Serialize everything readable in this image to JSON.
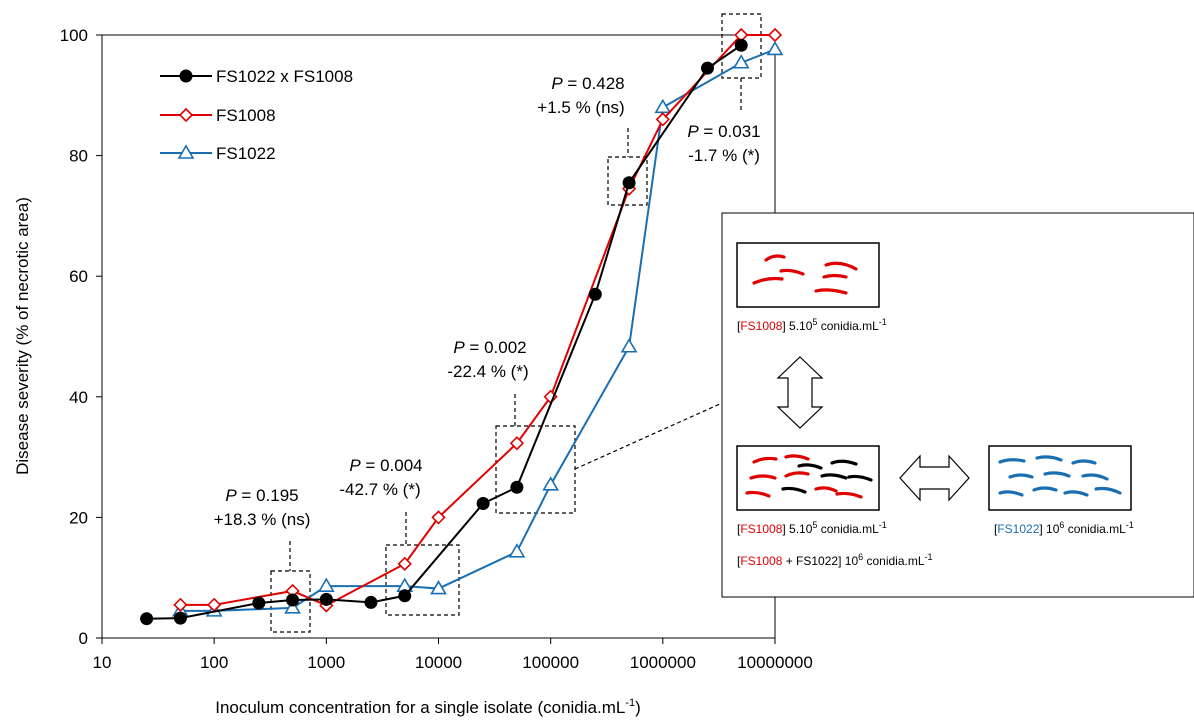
{
  "chart_data": {
    "type": "line",
    "x_scale": "log",
    "xlim": [
      10,
      10000000
    ],
    "ylim": [
      0,
      100
    ],
    "grid": false,
    "legend_position": "top-left",
    "xlabel": "Inoculum concentration for a single isolate (conidia.mL",
    "xlabel_sup": "-1",
    "xlabel_end": ")",
    "ylabel": "Disease severity (% of necrotic area)",
    "x_tick_labels": [
      "10",
      "100",
      "1000",
      "10000",
      "100000",
      "1000000",
      "10000000"
    ],
    "y_tick_labels": [
      "0",
      "20",
      "40",
      "60",
      "80",
      "100"
    ],
    "series": [
      {
        "name": "FS1022 x FS1008",
        "color": "#000000",
        "marker": "circle-filled",
        "x": [
          25,
          50,
          250,
          500,
          1000,
          2500,
          5000,
          25000,
          50000,
          250000,
          500000,
          2500000,
          5000000
        ],
        "y": [
          3.2,
          3.3,
          5.8,
          6.3,
          6.4,
          5.9,
          7.0,
          22.3,
          25.0,
          57.0,
          75.5,
          94.5,
          98.3
        ]
      },
      {
        "name": "FS1008",
        "color": "#e00000",
        "marker": "diamond-open",
        "x": [
          50,
          100,
          500,
          1000,
          5000,
          10000,
          50000,
          100000,
          500000,
          1000000,
          5000000,
          10000000
        ],
        "y": [
          5.5,
          5.5,
          7.8,
          5.4,
          12.3,
          20.0,
          32.3,
          40.0,
          74.5,
          86.0,
          100,
          100
        ]
      },
      {
        "name": "FS1022",
        "color": "#1a6fb3",
        "marker": "triangle-open",
        "x": [
          50,
          100,
          500,
          1000,
          5000,
          10000,
          50000,
          100000,
          500000,
          1000000,
          5000000,
          10000000
        ],
        "y": [
          4.5,
          4.5,
          5.0,
          8.6,
          8.6,
          8.2,
          14.3,
          25.4,
          48.3,
          88.0,
          95.4,
          97.6
        ]
      }
    ],
    "annotations": [
      {
        "p_prefix": "P",
        "p_value": " = 0.195",
        "change": "+18.3 % (ns)"
      },
      {
        "p_prefix": "P",
        "p_value": " = 0.004",
        "change": "-42.7 % (*)"
      },
      {
        "p_prefix": "P",
        "p_value": " = 0.002",
        "change": "-22.4 % (*)"
      },
      {
        "p_prefix": "P",
        "p_value": " = 0.428",
        "change": "+1.5 % (ns)"
      },
      {
        "p_prefix": "P",
        "p_value": " = 0.031",
        "change": "-1.7 % (*)"
      }
    ]
  },
  "inset": {
    "panel_top": {
      "isolate": "FS1008",
      "conc": "5.10",
      "exp": "5",
      "unit": " conidia.mL",
      "unit_exp": "-1"
    },
    "panel_mixed": {
      "isolate": "FS1008",
      "conc": "5.10",
      "exp": "5",
      "unit": " conidia.mL",
      "unit_exp": "-1"
    },
    "panel_blue": {
      "isolate": "FS1022",
      "conc": "10",
      "exp": "6",
      "unit": " conidia.mL",
      "unit_exp": "-1"
    },
    "mixture": {
      "isolate_red": "FS1008",
      "plus": " + FS1022",
      "conc": "10",
      "exp": "6",
      "unit": " conidia.mL",
      "unit_exp": "-1"
    }
  }
}
